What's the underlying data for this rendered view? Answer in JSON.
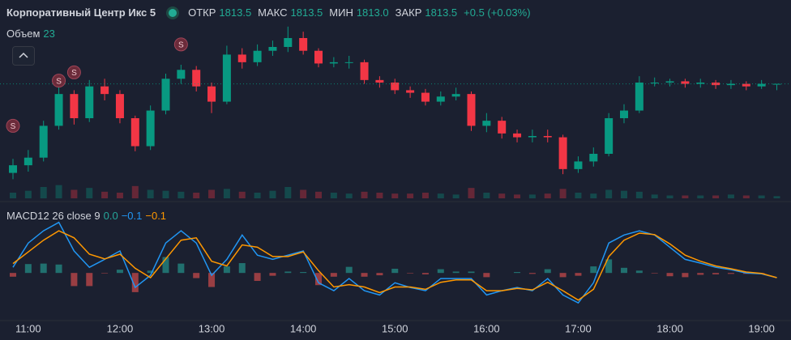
{
  "header": {
    "title": "Корпоративный Центр Икс 5",
    "ohlc_names": [
      "ОТКР",
      "МАКС",
      "МИН",
      "ЗАКР"
    ],
    "ohlc_labels": [
      "1813.5",
      "1813.5",
      "1813.0",
      "1813.5"
    ],
    "change": "+0.5 (+0.03%)"
  },
  "chart_data": [
    {
      "type": "candlestick",
      "volume_label": "Объем",
      "categories": [
        null,
        "11:00",
        null,
        null,
        null,
        null,
        null,
        "12:00",
        null,
        null,
        null,
        null,
        null,
        "13:00",
        null,
        null,
        null,
        null,
        null,
        "14:00",
        null,
        null,
        null,
        null,
        null,
        "15:00",
        null,
        null,
        null,
        null,
        null,
        "16:00",
        null,
        null,
        null,
        null,
        null,
        "17:00",
        null,
        null,
        null,
        null,
        null,
        "18:00",
        null,
        null,
        null,
        null,
        null,
        "19:00",
        null
      ],
      "open": [
        1806.5,
        1807.1,
        1807.7,
        1810.2,
        1812.7,
        1810.8,
        1813.3,
        1812.7,
        1810.8,
        1808.6,
        1811.4,
        1813.9,
        1814.6,
        1813.3,
        1812.1,
        1815.8,
        1815.2,
        1816.1,
        1816.4,
        1817.1,
        1816.1,
        1815.1,
        1815.2,
        1815.2,
        1813.8,
        1813.6,
        1813.0,
        1812.8,
        1812.1,
        1812.5,
        1812.7,
        1810.2,
        1810.6,
        1809.6,
        1809.3,
        1809.4,
        1809.3,
        1806.8,
        1807.4,
        1808.0,
        1810.8,
        1811.4,
        1813.6,
        1813.6,
        1813.7,
        1813.5,
        1813.6,
        1813.4,
        1813.5,
        1813.3,
        1813.5
      ],
      "high": [
        1807.6,
        1808.3,
        1810.6,
        1813.4,
        1813.0,
        1813.8,
        1813.9,
        1813.0,
        1811.0,
        1811.8,
        1814.3,
        1815.0,
        1814.9,
        1813.6,
        1816.5,
        1816.3,
        1816.6,
        1816.9,
        1818.0,
        1817.6,
        1816.3,
        1815.6,
        1815.7,
        1815.4,
        1814.1,
        1813.9,
        1813.3,
        1813.1,
        1812.9,
        1813.2,
        1812.9,
        1811.2,
        1810.9,
        1809.9,
        1809.9,
        1809.9,
        1809.5,
        1807.8,
        1808.5,
        1811.2,
        1811.9,
        1814.1,
        1814.0,
        1813.9,
        1813.9,
        1813.9,
        1813.8,
        1813.8,
        1813.7,
        1813.8,
        1813.5
      ],
      "low": [
        1806.0,
        1806.6,
        1807.4,
        1809.9,
        1810.3,
        1810.5,
        1812.2,
        1810.4,
        1808.2,
        1808.3,
        1811.1,
        1813.5,
        1812.9,
        1811.2,
        1811.9,
        1814.7,
        1814.9,
        1815.7,
        1816.0,
        1815.8,
        1814.8,
        1814.8,
        1814.7,
        1813.5,
        1813.2,
        1812.7,
        1812.4,
        1811.8,
        1811.8,
        1812.2,
        1809.8,
        1809.7,
        1809.2,
        1808.9,
        1808.9,
        1808.9,
        1806.4,
        1806.5,
        1807.0,
        1807.8,
        1810.4,
        1811.2,
        1813.3,
        1813.3,
        1813.2,
        1813.2,
        1813.1,
        1813.1,
        1813.0,
        1813.1,
        1813.0
      ],
      "close": [
        1807.1,
        1807.7,
        1810.2,
        1812.7,
        1810.8,
        1813.3,
        1812.7,
        1810.8,
        1808.6,
        1811.4,
        1813.9,
        1814.6,
        1813.3,
        1812.1,
        1815.8,
        1815.2,
        1816.1,
        1816.4,
        1817.1,
        1816.1,
        1815.1,
        1815.2,
        1815.2,
        1813.8,
        1813.6,
        1813.0,
        1812.8,
        1812.1,
        1812.5,
        1812.7,
        1810.2,
        1810.6,
        1809.6,
        1809.3,
        1809.4,
        1809.3,
        1806.8,
        1807.4,
        1808.0,
        1810.8,
        1811.4,
        1813.6,
        1813.6,
        1813.7,
        1813.5,
        1813.6,
        1813.4,
        1813.5,
        1813.3,
        1813.5,
        1813.5
      ],
      "volume": [
        60,
        80,
        120,
        140,
        90,
        110,
        70,
        60,
        130,
        90,
        80,
        70,
        60,
        90,
        100,
        70,
        60,
        80,
        120,
        90,
        70,
        60,
        50,
        70,
        60,
        50,
        50,
        60,
        50,
        40,
        110,
        60,
        50,
        40,
        40,
        50,
        100,
        60,
        50,
        90,
        80,
        70,
        40,
        30,
        30,
        30,
        30,
        40,
        30,
        30,
        23
      ],
      "ylim": [
        1804.5,
        1818.5
      ],
      "y2lim": [
        0,
        300
      ],
      "up_color": "#089981",
      "down_color": "#f23645",
      "annotations": [
        {
          "label": "S",
          "index": 0,
          "price": 1810.2
        },
        {
          "label": "S",
          "index": 3,
          "price": 1813.75
        },
        {
          "label": "S",
          "index": 4,
          "price": 1814.4
        },
        {
          "label": "S",
          "index": 11,
          "price": 1816.6
        }
      ]
    },
    {
      "type": "macd",
      "title": "MACD12 26 close 9",
      "series": [
        {
          "name": "histogram",
          "kind": "bar",
          "color": "#26a69a",
          "down_color": "#ef5350",
          "value_label": "0.0",
          "values": [
            -0.08,
            0.19,
            0.2,
            0.18,
            -0.28,
            -0.28,
            -0.01,
            0.07,
            -0.41,
            0.05,
            0.34,
            0.2,
            -0.11,
            -0.3,
            0.14,
            0.21,
            -0.17,
            -0.06,
            0.03,
            0.02,
            -0.26,
            -0.08,
            0.13,
            -0.08,
            -0.05,
            0.09,
            -0.01,
            -0.03,
            0.08,
            0.03,
            0.03,
            -0.09,
            0,
            0.02,
            -0.02,
            0.08,
            -0.09,
            -0.06,
            0.14,
            0.29,
            0.11,
            0.05,
            -0.01,
            -0.07,
            -0.09,
            -0.04,
            -0.03,
            -0.02,
            -0.02,
            -0.01,
            0
          ]
        },
        {
          "name": "macd",
          "kind": "line",
          "color": "#2196f3",
          "value_label": "−0.1",
          "values": [
            0.12,
            0.64,
            0.9,
            1.08,
            0.47,
            0.12,
            0.29,
            0.47,
            -0.31,
            -0.05,
            0.64,
            0.9,
            0.64,
            -0.05,
            0.29,
            0.81,
            0.38,
            0.29,
            0.38,
            0.47,
            -0.21,
            -0.38,
            -0.12,
            -0.38,
            -0.47,
            -0.21,
            -0.31,
            -0.38,
            -0.12,
            -0.12,
            -0.12,
            -0.47,
            -0.38,
            -0.31,
            -0.38,
            -0.12,
            -0.47,
            -0.64,
            -0.21,
            0.64,
            0.81,
            0.9,
            0.81,
            0.55,
            0.29,
            0.21,
            0.12,
            0.07,
            0.0,
            -0.02,
            -0.1
          ]
        },
        {
          "name": "signal",
          "kind": "line",
          "color": "#ff9800",
          "value_label": "−0.1",
          "values": [
            0.2,
            0.45,
            0.7,
            0.9,
            0.75,
            0.4,
            0.3,
            0.4,
            0.1,
            -0.1,
            0.3,
            0.7,
            0.75,
            0.25,
            0.15,
            0.6,
            0.55,
            0.35,
            0.35,
            0.45,
            0.05,
            -0.3,
            -0.25,
            -0.3,
            -0.42,
            -0.3,
            -0.3,
            -0.35,
            -0.2,
            -0.15,
            -0.15,
            -0.38,
            -0.38,
            -0.33,
            -0.36,
            -0.2,
            -0.38,
            -0.58,
            -0.35,
            0.35,
            0.7,
            0.85,
            0.82,
            0.62,
            0.38,
            0.25,
            0.15,
            0.09,
            0.02,
            -0.01,
            -0.1
          ]
        }
      ],
      "ylim": [
        -1.0,
        1.3
      ]
    }
  ]
}
